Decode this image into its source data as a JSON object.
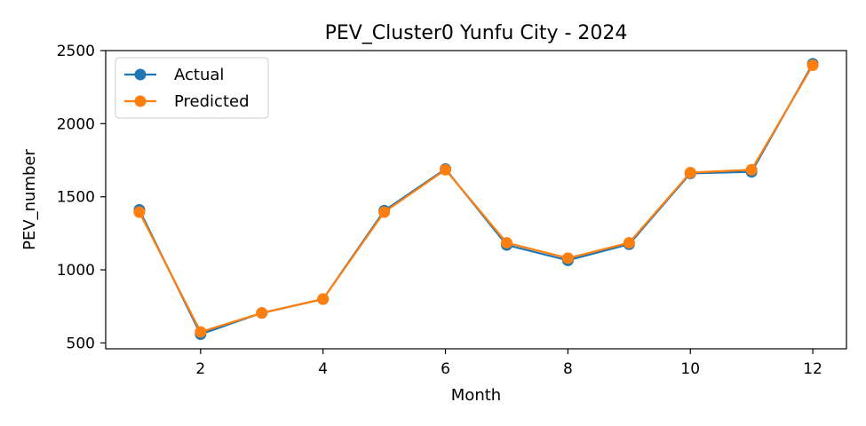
{
  "chart_data": {
    "type": "line",
    "title": "PEV_Cluster0 Yunfu City - 2024",
    "xlabel": "Month",
    "ylabel": "PEV_number",
    "x": [
      1,
      2,
      3,
      4,
      5,
      6,
      7,
      8,
      9,
      10,
      11,
      12
    ],
    "xlim": [
      0.45,
      12.55
    ],
    "ylim": [
      460,
      2500
    ],
    "x_ticks": [
      2,
      4,
      6,
      8,
      10,
      12
    ],
    "y_ticks": [
      500,
      1000,
      1500,
      2000,
      2500
    ],
    "grid": false,
    "legend_position": "top-left",
    "series": [
      {
        "name": "Actual",
        "color": "#1f77b4",
        "marker": "circle",
        "values": [
          1410,
          560,
          705,
          800,
          1405,
          1690,
          1170,
          1065,
          1175,
          1660,
          1670,
          2410
        ]
      },
      {
        "name": "Predicted",
        "color": "#ff7f0e",
        "marker": "circle",
        "values": [
          1395,
          575,
          705,
          800,
          1395,
          1685,
          1185,
          1080,
          1185,
          1665,
          1685,
          2400
        ]
      }
    ]
  }
}
